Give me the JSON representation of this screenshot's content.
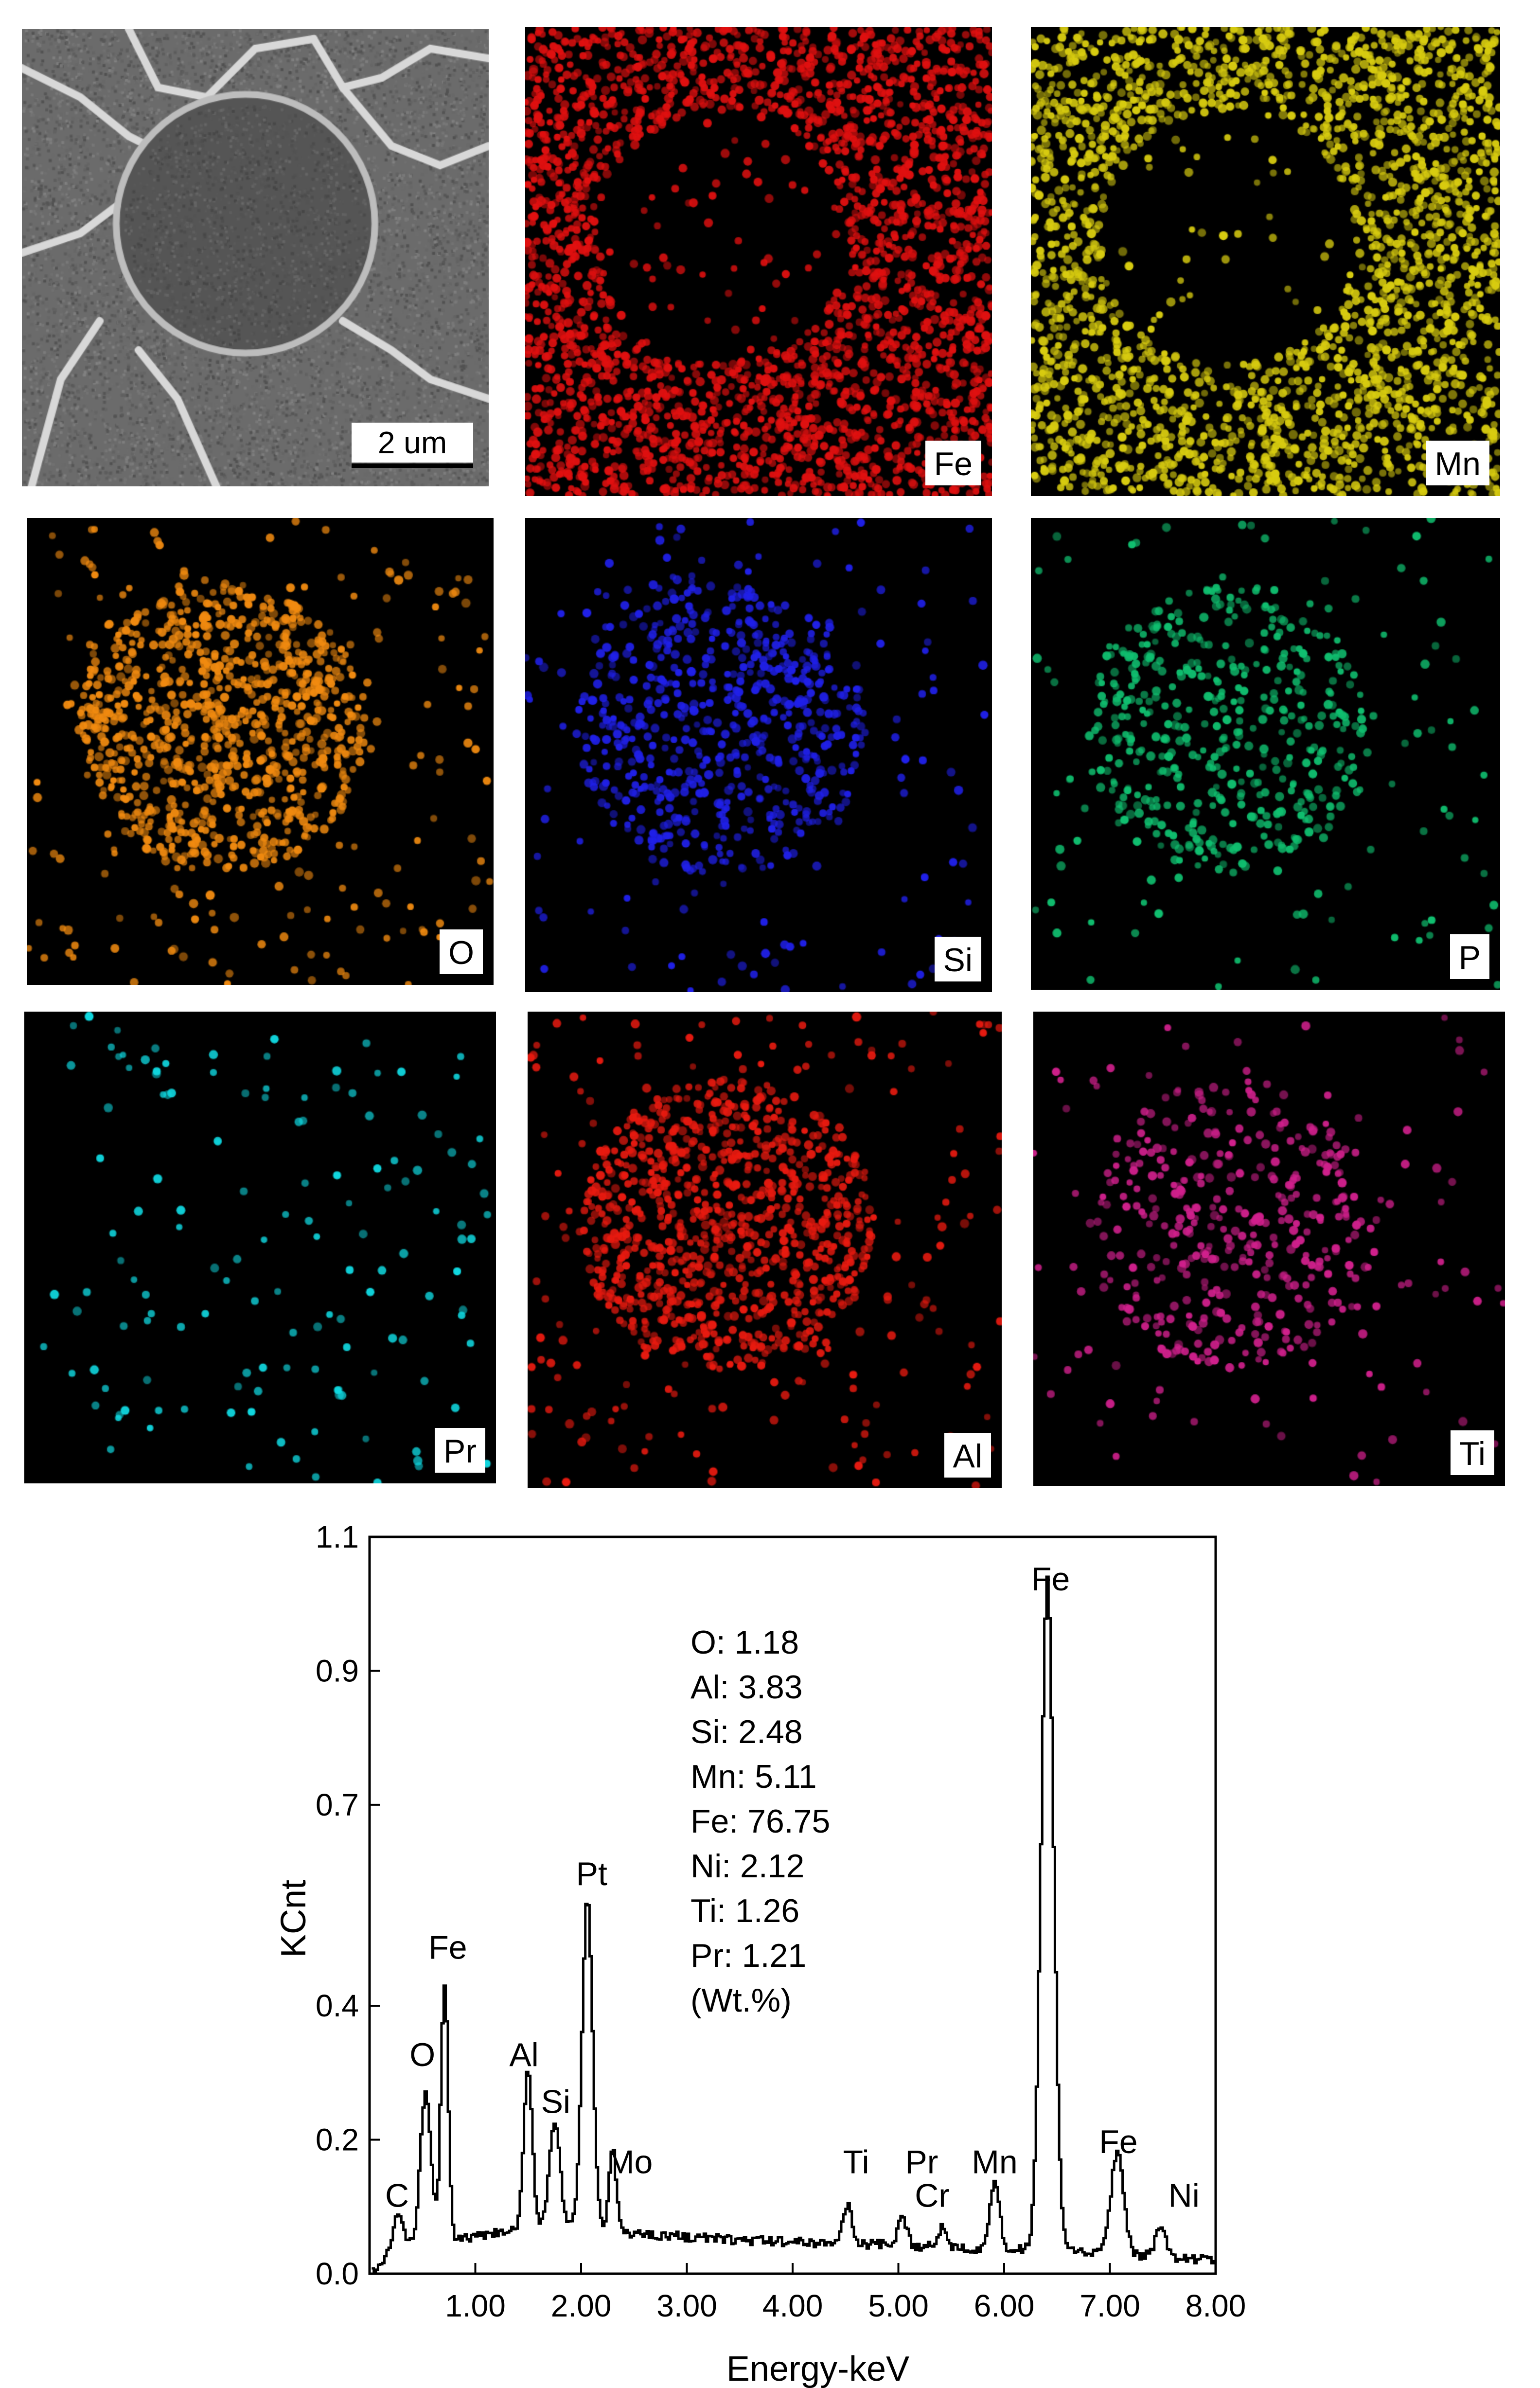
{
  "panels": [
    {
      "id": "sem",
      "label": "",
      "scale_bar": "2 um",
      "kind": "sem"
    },
    {
      "id": "fe",
      "label": "Fe",
      "color": "#e01010",
      "pattern": "depleted",
      "density": 1.0
    },
    {
      "id": "mn",
      "label": "Mn",
      "color": "#d8cc10",
      "pattern": "depleted",
      "density": 0.9
    },
    {
      "id": "o",
      "label": "O",
      "color": "#f08a10",
      "pattern": "concentrated",
      "density": 0.6
    },
    {
      "id": "si",
      "label": "Si",
      "color": "#2020e8",
      "pattern": "concentrated",
      "density": 0.4
    },
    {
      "id": "p",
      "label": "P",
      "color": "#10c070",
      "pattern": "concentrated",
      "density": 0.3
    },
    {
      "id": "pr",
      "label": "Pr",
      "color": "#10d8e0",
      "pattern": "scattered",
      "density": 0.2
    },
    {
      "id": "al",
      "label": "Al",
      "color": "#e81a10",
      "pattern": "concentrated",
      "density": 0.6
    },
    {
      "id": "ti",
      "label": "Ti",
      "color": "#d0208c",
      "pattern": "concentrated",
      "density": 0.25
    }
  ],
  "chart_data": {
    "type": "line",
    "xlabel": "Energy-keV",
    "ylabel": "KCnt",
    "xlim": [
      0.0,
      8.0
    ],
    "ylim": [
      0.0,
      1.1
    ],
    "x_ticks": [
      "1.00",
      "2.00",
      "3.00",
      "4.00",
      "5.00",
      "6.00",
      "7.00",
      "8.00"
    ],
    "y_ticks": [
      "0.0",
      "0.2",
      "0.4",
      "0.7",
      "0.9",
      "1.1"
    ],
    "y_tick_values": [
      0.0,
      0.2,
      0.4,
      0.7,
      0.9,
      1.1
    ],
    "baseline": [
      [
        0.0,
        0.0
      ],
      [
        0.15,
        0.02
      ],
      [
        0.4,
        0.04
      ],
      [
        0.8,
        0.05
      ],
      [
        1.2,
        0.06
      ],
      [
        1.6,
        0.07
      ],
      [
        2.5,
        0.06
      ],
      [
        3.5,
        0.05
      ],
      [
        4.5,
        0.045
      ],
      [
        5.5,
        0.04
      ],
      [
        6.2,
        0.035
      ],
      [
        7.0,
        0.03
      ],
      [
        8.0,
        0.02
      ]
    ],
    "peaks": [
      {
        "name": "C",
        "x": 0.26,
        "height": 0.06,
        "width": 0.05
      },
      {
        "name": "O",
        "x": 0.52,
        "height": 0.23,
        "width": 0.05
      },
      {
        "name": "Fe",
        "x": 0.7,
        "height": 0.38,
        "width": 0.035
      },
      {
        "name": "Al",
        "x": 1.49,
        "height": 0.24,
        "width": 0.04
      },
      {
        "name": "Si",
        "x": 1.74,
        "height": 0.16,
        "width": 0.05
      },
      {
        "name": "Pt",
        "x": 2.05,
        "height": 0.49,
        "width": 0.05
      },
      {
        "name": "Mo",
        "x": 2.29,
        "height": 0.12,
        "width": 0.035
      },
      {
        "name": "Ti",
        "x": 4.51,
        "height": 0.06,
        "width": 0.04
      },
      {
        "name": "Pr",
        "x": 5.03,
        "height": 0.04,
        "width": 0.04
      },
      {
        "name": "Cr",
        "x": 5.41,
        "height": 0.03,
        "width": 0.04
      },
      {
        "name": "Mn",
        "x": 5.9,
        "height": 0.1,
        "width": 0.045
      },
      {
        "name": "Fe",
        "x": 6.4,
        "height": 1.0,
        "width": 0.06
      },
      {
        "name": "Fe",
        "x": 7.06,
        "height": 0.15,
        "width": 0.06
      },
      {
        "name": "Ni",
        "x": 7.47,
        "height": 0.04,
        "width": 0.05
      }
    ],
    "peak_labels": [
      {
        "text": "C",
        "x": 0.26,
        "y": 0.1
      },
      {
        "text": "O",
        "x": 0.5,
        "y": 0.31
      },
      {
        "text": "Fe",
        "x": 0.74,
        "y": 0.47
      },
      {
        "text": "Al",
        "x": 1.46,
        "y": 0.31
      },
      {
        "text": "Si",
        "x": 1.76,
        "y": 0.24
      },
      {
        "text": "Pt",
        "x": 2.1,
        "y": 0.58
      },
      {
        "text": "Mo",
        "x": 2.46,
        "y": 0.15
      },
      {
        "text": "Ti",
        "x": 4.6,
        "y": 0.15
      },
      {
        "text": "Pr",
        "x": 5.22,
        "y": 0.15
      },
      {
        "text": "Cr",
        "x": 5.32,
        "y": 0.1
      },
      {
        "text": "Mn",
        "x": 5.91,
        "y": 0.15
      },
      {
        "text": "Fe",
        "x": 6.44,
        "y": 1.02
      },
      {
        "text": "Fe",
        "x": 7.08,
        "y": 0.18
      },
      {
        "text": "Ni",
        "x": 7.7,
        "y": 0.1
      }
    ],
    "annotation": [
      "O: 1.18",
      "Al: 3.83",
      "Si: 2.48",
      "Mn: 5.11",
      "Fe: 76.75",
      "Ni: 2.12",
      "Ti: 1.26",
      "Pr: 1.21",
      "(Wt.%)"
    ]
  }
}
